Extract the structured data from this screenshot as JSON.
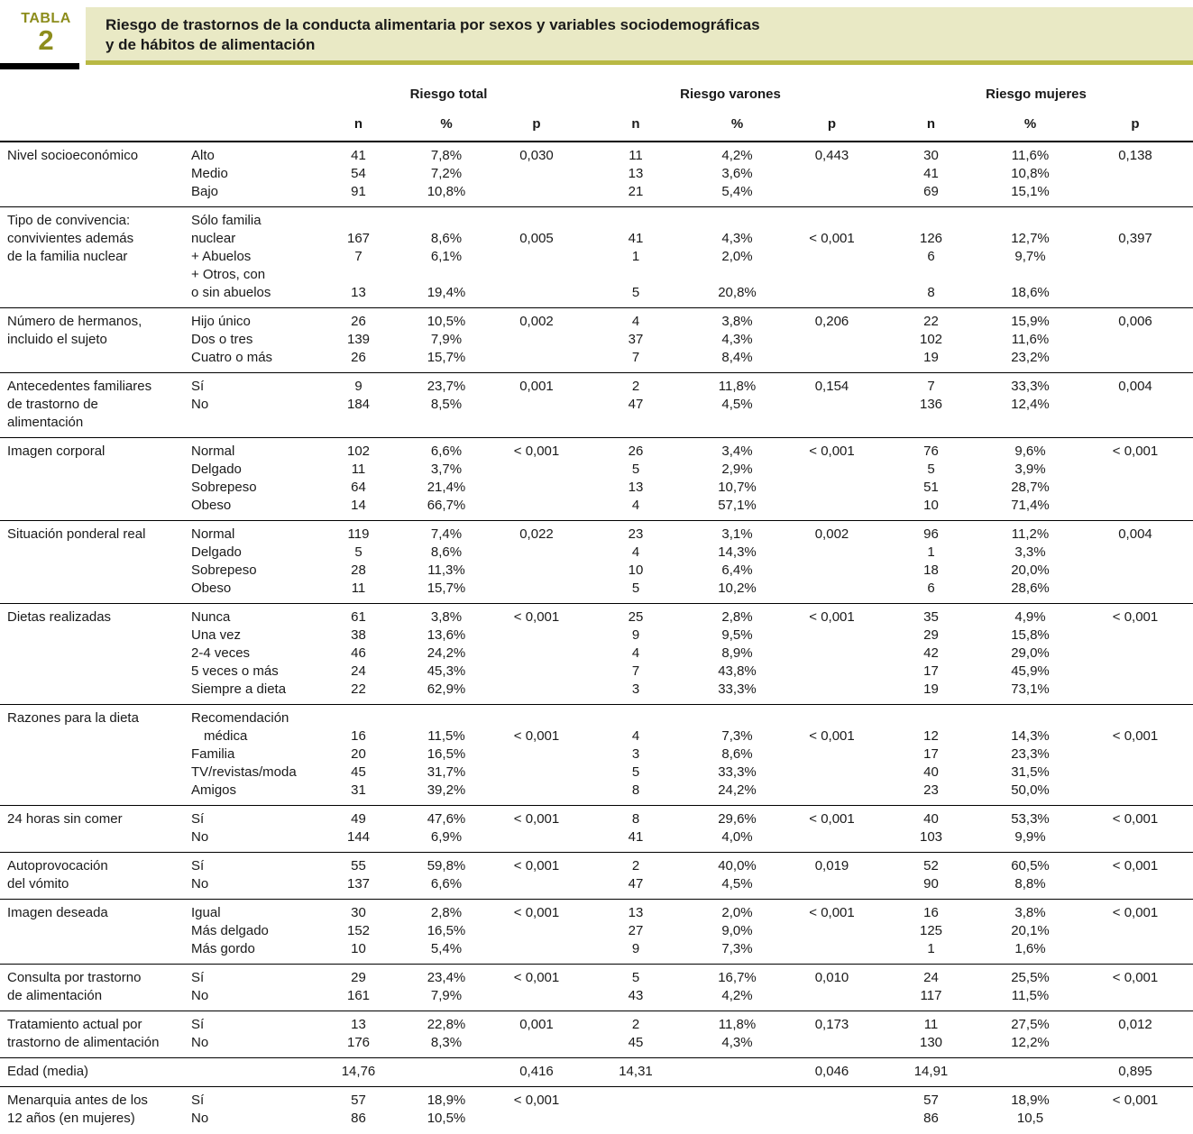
{
  "badge": {
    "word": "TABLA",
    "number": "2"
  },
  "title": {
    "line1": "Riesgo de trastornos de la conducta alimentaria por sexos y variables sociodemográficas",
    "line2": "y de hábitos de alimentación"
  },
  "colors": {
    "olive_text": "#8d8d1c",
    "band_background": "#e9e9c5",
    "band_edge": "#b9b944",
    "bottom_bar": "#595a5c"
  },
  "columns": {
    "groups": [
      "Riesgo total",
      "Riesgo varones",
      "Riesgo mujeres"
    ],
    "sub": [
      "n",
      "%",
      "p"
    ]
  },
  "groups": [
    {
      "label": [
        "Nivel socioeconómico"
      ],
      "rows": [
        {
          "cat": "Alto",
          "vals": [
            "41",
            "7,8%",
            "0,030",
            "11",
            "4,2%",
            "0,443",
            "30",
            "11,6%",
            "0,138"
          ]
        },
        {
          "cat": "Medio",
          "vals": [
            "54",
            "7,2%",
            "",
            "13",
            "3,6%",
            "",
            "41",
            "10,8%",
            ""
          ]
        },
        {
          "cat": "Bajo",
          "vals": [
            "91",
            "10,8%",
            "",
            "21",
            "5,4%",
            "",
            "69",
            "15,1%",
            ""
          ]
        }
      ]
    },
    {
      "label": [
        "Tipo de convivencia:",
        "convivientes además",
        "de la familia nuclear"
      ],
      "rows": [
        {
          "cat": "Sólo familia",
          "vals": [
            "",
            "",
            "",
            "",
            "",
            "",
            "",
            "",
            ""
          ]
        },
        {
          "cat": "nuclear",
          "vals": [
            "167",
            "8,6%",
            "0,005",
            "41",
            "4,3%",
            "< 0,001",
            "126",
            "12,7%",
            "0,397"
          ]
        },
        {
          "cat": "+ Abuelos",
          "vals": [
            "7",
            "6,1%",
            "",
            "1",
            "2,0%",
            "",
            "6",
            "9,7%",
            ""
          ]
        },
        {
          "cat": "+ Otros, con",
          "vals": [
            "",
            "",
            "",
            "",
            "",
            "",
            "",
            "",
            ""
          ]
        },
        {
          "cat": "o sin abuelos",
          "vals": [
            "13",
            "19,4%",
            "",
            "5",
            "20,8%",
            "",
            "8",
            "18,6%",
            ""
          ]
        }
      ]
    },
    {
      "label": [
        "Número de hermanos,",
        "incluido el sujeto"
      ],
      "rows": [
        {
          "cat": "Hijo único",
          "vals": [
            "26",
            "10,5%",
            "0,002",
            "4",
            "3,8%",
            "0,206",
            "22",
            "15,9%",
            "0,006"
          ]
        },
        {
          "cat": "Dos o tres",
          "vals": [
            "139",
            "7,9%",
            "",
            "37",
            "4,3%",
            "",
            "102",
            "11,6%",
            ""
          ]
        },
        {
          "cat": "Cuatro o más",
          "vals": [
            "26",
            "15,7%",
            "",
            "7",
            "8,4%",
            "",
            "19",
            "23,2%",
            ""
          ]
        }
      ]
    },
    {
      "label": [
        "Antecedentes familiares",
        "de trastorno de",
        "alimentación"
      ],
      "rows": [
        {
          "cat": "Sí",
          "vals": [
            "9",
            "23,7%",
            "0,001",
            "2",
            "11,8%",
            "0,154",
            "7",
            "33,3%",
            "0,004"
          ]
        },
        {
          "cat": "No",
          "vals": [
            "184",
            "8,5%",
            "",
            "47",
            "4,5%",
            "",
            "136",
            "12,4%",
            ""
          ]
        }
      ]
    },
    {
      "label": [
        "Imagen corporal"
      ],
      "rows": [
        {
          "cat": "Normal",
          "vals": [
            "102",
            "6,6%",
            "< 0,001",
            "26",
            "3,4%",
            "< 0,001",
            "76",
            "9,6%",
            "< 0,001"
          ]
        },
        {
          "cat": "Delgado",
          "vals": [
            "11",
            "3,7%",
            "",
            "5",
            "2,9%",
            "",
            "5",
            "3,9%",
            ""
          ]
        },
        {
          "cat": "Sobrepeso",
          "vals": [
            "64",
            "21,4%",
            "",
            "13",
            "10,7%",
            "",
            "51",
            "28,7%",
            ""
          ]
        },
        {
          "cat": "Obeso",
          "vals": [
            "14",
            "66,7%",
            "",
            "4",
            "57,1%",
            "",
            "10",
            "71,4%",
            ""
          ]
        }
      ]
    },
    {
      "label": [
        "Situación ponderal real"
      ],
      "rows": [
        {
          "cat": "Normal",
          "vals": [
            "119",
            "7,4%",
            "0,022",
            "23",
            "3,1%",
            "0,002",
            "96",
            "11,2%",
            "0,004"
          ]
        },
        {
          "cat": "Delgado",
          "vals": [
            "5",
            "8,6%",
            "",
            "4",
            "14,3%",
            "",
            "1",
            "3,3%",
            ""
          ]
        },
        {
          "cat": "Sobrepeso",
          "vals": [
            "28",
            "11,3%",
            "",
            "10",
            "6,4%",
            "",
            "18",
            "20,0%",
            ""
          ]
        },
        {
          "cat": "Obeso",
          "vals": [
            "11",
            "15,7%",
            "",
            "5",
            "10,2%",
            "",
            "6",
            "28,6%",
            ""
          ]
        }
      ]
    },
    {
      "label": [
        "Dietas realizadas"
      ],
      "rows": [
        {
          "cat": "Nunca",
          "vals": [
            "61",
            "3,8%",
            "< 0,001",
            "25",
            "2,8%",
            "< 0,001",
            "35",
            "4,9%",
            "< 0,001"
          ]
        },
        {
          "cat": "Una vez",
          "vals": [
            "38",
            "13,6%",
            "",
            "9",
            "9,5%",
            "",
            "29",
            "15,8%",
            ""
          ]
        },
        {
          "cat": "2-4 veces",
          "vals": [
            "46",
            "24,2%",
            "",
            "4",
            "8,9%",
            "",
            "42",
            "29,0%",
            ""
          ]
        },
        {
          "cat": "5 veces o más",
          "vals": [
            "24",
            "45,3%",
            "",
            "7",
            "43,8%",
            "",
            "17",
            "45,9%",
            ""
          ]
        },
        {
          "cat": "Siempre a dieta",
          "vals": [
            "22",
            "62,9%",
            "",
            "3",
            "33,3%",
            "",
            "19",
            "73,1%",
            ""
          ]
        }
      ]
    },
    {
      "label": [
        "Razones para la dieta"
      ],
      "rows": [
        {
          "cat": "Recomendación",
          "vals": [
            "",
            "",
            "",
            "",
            "",
            "",
            "",
            "",
            ""
          ]
        },
        {
          "cat": "médica",
          "indent": true,
          "vals": [
            "16",
            "11,5%",
            "< 0,001",
            "4",
            "7,3%",
            "< 0,001",
            "12",
            "14,3%",
            "< 0,001"
          ]
        },
        {
          "cat": "Familia",
          "vals": [
            "20",
            "16,5%",
            "",
            "3",
            "8,6%",
            "",
            "17",
            "23,3%",
            ""
          ]
        },
        {
          "cat": "TV/revistas/moda",
          "vals": [
            "45",
            "31,7%",
            "",
            "5",
            "33,3%",
            "",
            "40",
            "31,5%",
            ""
          ]
        },
        {
          "cat": "Amigos",
          "vals": [
            "31",
            "39,2%",
            "",
            "8",
            "24,2%",
            "",
            "23",
            "50,0%",
            ""
          ]
        }
      ]
    },
    {
      "label": [
        "24 horas sin comer"
      ],
      "rows": [
        {
          "cat": "Sí",
          "vals": [
            "49",
            "47,6%",
            "< 0,001",
            "8",
            "29,6%",
            "< 0,001",
            "40",
            "53,3%",
            "< 0,001"
          ]
        },
        {
          "cat": "No",
          "vals": [
            "144",
            "6,9%",
            "",
            "41",
            "4,0%",
            "",
            "103",
            "9,9%",
            ""
          ]
        }
      ]
    },
    {
      "label": [
        "Autoprovocación",
        "del vómito"
      ],
      "rows": [
        {
          "cat": "Sí",
          "vals": [
            "55",
            "59,8%",
            "< 0,001",
            "2",
            "40,0%",
            "0,019",
            "52",
            "60,5%",
            "< 0,001"
          ]
        },
        {
          "cat": "No",
          "vals": [
            "137",
            "6,6%",
            "",
            "47",
            "4,5%",
            "",
            "90",
            "8,8%",
            ""
          ]
        }
      ]
    },
    {
      "label": [
        "Imagen deseada"
      ],
      "rows": [
        {
          "cat": "Igual",
          "vals": [
            "30",
            "2,8%",
            "< 0,001",
            "13",
            "2,0%",
            "< 0,001",
            "16",
            "3,8%",
            "< 0,001"
          ]
        },
        {
          "cat": "Más delgado",
          "vals": [
            "152",
            "16,5%",
            "",
            "27",
            "9,0%",
            "",
            "125",
            "20,1%",
            ""
          ]
        },
        {
          "cat": "Más gordo",
          "vals": [
            "10",
            "5,4%",
            "",
            "9",
            "7,3%",
            "",
            "1",
            "1,6%",
            ""
          ]
        }
      ]
    },
    {
      "label": [
        "Consulta por trastorno",
        "de alimentación"
      ],
      "rows": [
        {
          "cat": "Sí",
          "vals": [
            "29",
            "23,4%",
            "< 0,001",
            "5",
            "16,7%",
            "0,010",
            "24",
            "25,5%",
            "< 0,001"
          ]
        },
        {
          "cat": "No",
          "vals": [
            "161",
            "7,9%",
            "",
            "43",
            "4,2%",
            "",
            "117",
            "11,5%",
            ""
          ]
        }
      ]
    },
    {
      "label": [
        "Tratamiento actual por",
        "trastorno de alimentación"
      ],
      "rows": [
        {
          "cat": "Sí",
          "vals": [
            "13",
            "22,8%",
            "0,001",
            "2",
            "11,8%",
            "0,173",
            "11",
            "27,5%",
            "0,012"
          ]
        },
        {
          "cat": "No",
          "vals": [
            "176",
            "8,3%",
            "",
            "45",
            "4,3%",
            "",
            "130",
            "12,2%",
            ""
          ]
        }
      ]
    },
    {
      "label": [
        "Edad (media)"
      ],
      "rows": [
        {
          "cat": "",
          "vals": [
            "14,76",
            "",
            "0,416",
            "14,31",
            "",
            "0,046",
            "14,91",
            "",
            "0,895"
          ]
        }
      ]
    },
    {
      "label": [
        "Menarquia antes de los",
        "12 años (en mujeres)"
      ],
      "rows": [
        {
          "cat": "Sí",
          "vals": [
            "57",
            "18,9%",
            "< 0,001",
            "",
            "",
            "",
            "57",
            "18,9%",
            "< 0,001"
          ]
        },
        {
          "cat": "No",
          "vals": [
            "86",
            "10,5%",
            "",
            "",
            "",
            "",
            "86",
            "10,5",
            ""
          ]
        }
      ]
    }
  ]
}
